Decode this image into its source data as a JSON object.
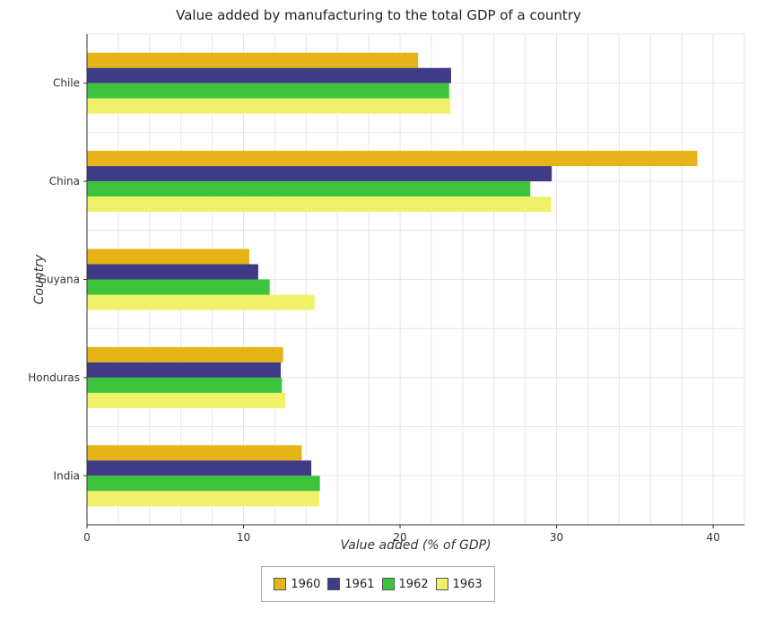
{
  "title": "Value added by manufacturing to the total GDP of a country",
  "chart_data": {
    "type": "bar",
    "orientation": "horizontal",
    "categories": [
      "Chile",
      "China",
      "Guyana",
      "Honduras",
      "India"
    ],
    "series": [
      {
        "name": "1960",
        "color": "#e6b417",
        "values": [
          21.15,
          38.99,
          10.37,
          12.53,
          13.72
        ]
      },
      {
        "name": "1961",
        "color": "#3f3b86",
        "values": [
          23.26,
          29.69,
          10.94,
          12.38,
          14.33
        ]
      },
      {
        "name": "1962",
        "color": "#3cc43c",
        "values": [
          23.14,
          28.32,
          11.67,
          12.45,
          14.88
        ]
      },
      {
        "name": "1963",
        "color": "#f1f169",
        "values": [
          23.22,
          29.66,
          14.54,
          12.67,
          14.85
        ]
      }
    ],
    "xlabel": "Value added (% of GDP)",
    "ylabel": "Country",
    "xlim": [
      0,
      42
    ],
    "xticks": [
      0,
      10,
      20,
      30,
      40
    ],
    "grid": true,
    "legend_position": "bottom-center"
  }
}
